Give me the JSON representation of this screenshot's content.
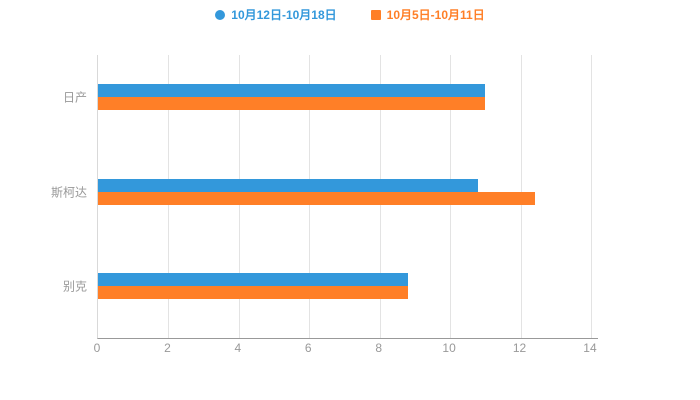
{
  "chart_data": {
    "type": "bar",
    "orientation": "horizontal",
    "title": "",
    "xlabel": "",
    "ylabel": "",
    "categories": [
      "日产",
      "斯柯达",
      "别克"
    ],
    "series": [
      {
        "name": "10月12日-10月18日",
        "color": "#3398db",
        "marker": "circle",
        "values": [
          11.0,
          10.8,
          8.8
        ]
      },
      {
        "name": "10月5日-10月11日",
        "color": "#ff7f27",
        "marker": "square",
        "values": [
          11.0,
          12.4,
          8.8
        ]
      }
    ],
    "x_ticks": [
      0,
      2,
      4,
      6,
      8,
      10,
      12,
      14
    ],
    "xlim": [
      0,
      14.2
    ],
    "grid": true,
    "legend_position": "top"
  },
  "colors": {
    "background": "#ffffff",
    "grid": "#e3e3e3",
    "axis": "#999999",
    "tick_label": "#999999",
    "category_label": "#999999"
  }
}
